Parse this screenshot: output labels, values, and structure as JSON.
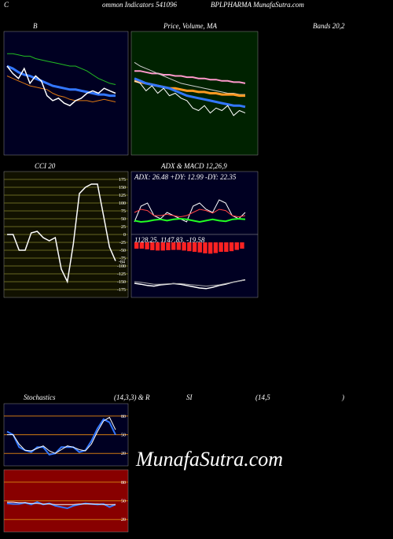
{
  "header": {
    "c": "C",
    "indicators": "ommon  Indicators 541096",
    "site": "BPLPHARMA MunafaSutra.com",
    "row1": [
      "B",
      "Price,  Volume,  MA",
      "Bands 20,2"
    ],
    "row2": [
      "CCI 20",
      "ADX  & MACD 12,26,9"
    ],
    "row3": [
      "Stochastics",
      "(14,3,3) & R",
      "SI",
      "(14,5",
      ")"
    ],
    "watermark": "MunafaSutra.com"
  },
  "chart_data": [
    {
      "type": "line",
      "ylim": [
        0,
        100
      ],
      "background": "#000022",
      "series": [
        {
          "color": "#22bb22",
          "width": 1,
          "values": [
            82,
            82,
            81,
            80,
            80,
            78,
            77,
            76,
            75,
            74,
            73,
            72,
            72,
            70,
            68,
            65,
            62,
            60,
            58,
            57
          ]
        },
        {
          "color": "#3377ff",
          "width": 3,
          "values": [
            72,
            70,
            67,
            65,
            64,
            62,
            60,
            58,
            56,
            55,
            54,
            53,
            53,
            52,
            51,
            50,
            49,
            49,
            48,
            48
          ]
        },
        {
          "color": "#dd7711",
          "width": 1,
          "values": [
            64,
            62,
            60,
            58,
            56,
            55,
            54,
            53,
            50,
            48,
            47,
            45,
            44,
            44,
            44,
            43,
            44,
            45,
            44,
            43
          ]
        },
        {
          "color": "#ffffff",
          "width": 1.5,
          "values": [
            72,
            66,
            62,
            70,
            58,
            64,
            60,
            48,
            44,
            46,
            42,
            40,
            44,
            46,
            50,
            52,
            50,
            54,
            52,
            50
          ]
        }
      ]
    },
    {
      "type": "line",
      "ylim": [
        0,
        100
      ],
      "background": "#002200",
      "series": [
        {
          "color": "#ff99cc",
          "width": 2,
          "values": [
            68,
            68,
            67,
            66,
            66,
            65,
            65,
            64,
            64,
            63,
            63,
            62,
            62,
            61,
            61,
            60,
            60,
            59,
            59,
            58
          ]
        },
        {
          "color": "#cccccc",
          "width": 1,
          "values": [
            75,
            72,
            70,
            68,
            66,
            64,
            62,
            60,
            58,
            57,
            56,
            55,
            54,
            53,
            52,
            51,
            50,
            50,
            49,
            49
          ]
        },
        {
          "color": "#ff9922",
          "width": 3,
          "values": [
            60,
            59,
            58,
            57,
            56,
            55,
            54,
            54,
            53,
            52,
            52,
            51,
            51,
            50,
            50,
            49,
            49,
            49,
            48,
            48
          ]
        },
        {
          "color": "#3377ff",
          "width": 3,
          "values": [
            62,
            60,
            58,
            57,
            56,
            55,
            54,
            52,
            50,
            48,
            47,
            46,
            45,
            44,
            43,
            42,
            41,
            40,
            40,
            39
          ]
        },
        {
          "color": "#ffffff",
          "width": 1,
          "values": [
            60,
            58,
            52,
            56,
            50,
            54,
            48,
            50,
            46,
            44,
            38,
            36,
            40,
            34,
            38,
            36,
            40,
            32,
            36,
            34
          ]
        }
      ]
    },
    {
      "type": "line",
      "ylim": [
        -200,
        200
      ],
      "background": "#111100",
      "grid_color": "#666622",
      "yticks": [
        175,
        150,
        125,
        100,
        75,
        50,
        25,
        0,
        -25,
        -50,
        -75,
        -100,
        -125,
        -150,
        -175
      ],
      "series": [
        {
          "color": "#ffffff",
          "width": 1.5,
          "values": [
            0,
            0,
            -50,
            -50,
            5,
            10,
            -10,
            -20,
            -10,
            -110,
            -150,
            -30,
            130,
            150,
            160,
            160,
            60,
            -40,
            -84
          ]
        }
      ]
    },
    {
      "type": "line",
      "ylim": [
        0,
        100
      ],
      "background": "#000022",
      "text": "ADX: 26.48  +DY: 12.99 -DY: 22.35",
      "series": [
        {
          "color": "#ffffff",
          "width": 1,
          "values": [
            20,
            45,
            50,
            30,
            25,
            35,
            30,
            25,
            20,
            45,
            50,
            40,
            35,
            55,
            50,
            30,
            25,
            35
          ]
        },
        {
          "color": "#ff4444",
          "width": 1,
          "values": [
            35,
            40,
            38,
            30,
            30,
            32,
            30,
            28,
            30,
            35,
            40,
            38,
            34,
            40,
            38,
            30,
            28,
            30
          ]
        },
        {
          "color": "#22ff22",
          "width": 2,
          "values": [
            22,
            20,
            21,
            23,
            24,
            22,
            24,
            25,
            24,
            22,
            20,
            22,
            24,
            22,
            21,
            24,
            25,
            24
          ]
        }
      ]
    },
    {
      "type": "bar",
      "ylim": [
        -100,
        100
      ],
      "background": "#000022",
      "text": "1128.25,  1147.83,  -19.58",
      "color": "#ff2222",
      "values": [
        -20,
        -20,
        -22,
        -25,
        -26,
        -26,
        -25,
        -24,
        -24,
        -26,
        -28,
        -30,
        -32,
        -35,
        -36,
        -34,
        -30,
        -30,
        -28,
        -24,
        -20
      ],
      "series": [
        {
          "color": "#ffffff",
          "width": 1.5,
          "values": [
            -55,
            -58,
            -62,
            -64,
            -60,
            -58,
            -56,
            -58,
            -62,
            -66,
            -70,
            -72,
            -68,
            -62,
            -58,
            -52,
            -48,
            -44
          ]
        },
        {
          "color": "#aaaaaa",
          "width": 1,
          "values": [
            -50,
            -52,
            -55,
            -58,
            -58,
            -57,
            -56,
            -56,
            -58,
            -60,
            -62,
            -64,
            -62,
            -60,
            -56,
            -52,
            -48,
            -45
          ]
        }
      ]
    },
    {
      "type": "line",
      "ylim": [
        0,
        100
      ],
      "background": "#000022",
      "grid_color": "#cc7711",
      "yticks": [
        80,
        50,
        20
      ],
      "series": [
        {
          "color": "#3377ff",
          "width": 2,
          "values": [
            55,
            50,
            30,
            25,
            22,
            30,
            30,
            18,
            20,
            30,
            30,
            30,
            22,
            25,
            40,
            60,
            75,
            70,
            50
          ]
        },
        {
          "color": "#ffffff",
          "width": 1,
          "values": [
            50,
            50,
            35,
            25,
            24,
            28,
            32,
            24,
            20,
            26,
            32,
            30,
            26,
            24,
            35,
            55,
            72,
            78,
            58
          ]
        }
      ]
    },
    {
      "type": "line",
      "ylim": [
        0,
        100
      ],
      "background": "#880000",
      "grid_color": "#cc7711",
      "yticks": [
        80,
        50,
        20
      ],
      "series": [
        {
          "color": "#3377ff",
          "width": 2,
          "values": [
            46,
            45,
            45,
            47,
            44,
            48,
            44,
            46,
            42,
            40,
            38,
            42,
            44,
            46,
            45,
            44,
            45,
            40,
            44
          ]
        },
        {
          "color": "#ffffff",
          "width": 1,
          "values": [
            48,
            48,
            47,
            47,
            46,
            46,
            45,
            45,
            44,
            44,
            44,
            44,
            45,
            45,
            45,
            45,
            44,
            44,
            44
          ]
        }
      ]
    }
  ]
}
